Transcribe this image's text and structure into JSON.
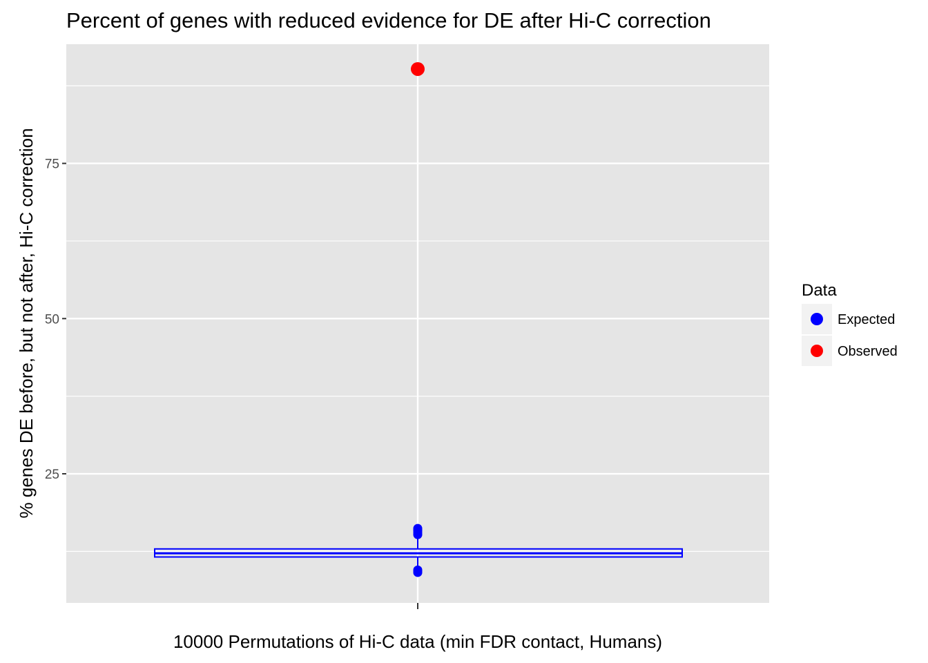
{
  "chart_data": {
    "type": "boxplot",
    "title": "Percent of genes with reduced evidence for DE after Hi-C correction",
    "xlabel": "10000 Permutations of Hi-C data (min FDR contact, Humans)",
    "ylabel": "% genes DE before, but not after, Hi-C correction",
    "categories": [
      ""
    ],
    "ylim": [
      4.2,
      94.2
    ],
    "yticks": [
      25,
      50,
      75
    ],
    "grid": true,
    "legend": {
      "title": "Data",
      "position": "right",
      "entries": [
        {
          "label": "Expected",
          "color": "#0000ff"
        },
        {
          "label": "Observed",
          "color": "#ff0000"
        }
      ]
    },
    "series": [
      {
        "name": "Expected",
        "color": "#0000ff",
        "box": {
          "q1": 11.6,
          "median": 12.2,
          "q3": 12.9,
          "whisker_low": 9.8,
          "whisker_high": 14.8
        },
        "outliers": [
          15.2,
          15.5,
          15.8,
          16.0,
          16.2,
          9.1,
          9.3,
          9.5
        ]
      },
      {
        "name": "Observed",
        "color": "#ff0000",
        "points": [
          90.2
        ]
      }
    ]
  }
}
